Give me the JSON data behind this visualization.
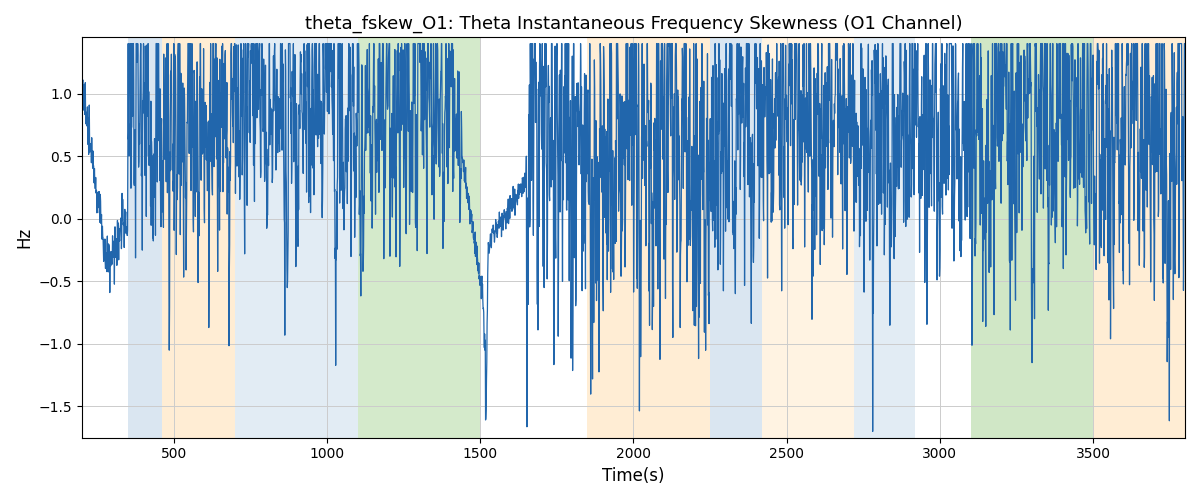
{
  "title": "theta_fskew_O1: Theta Instantaneous Frequency Skewness (O1 Channel)",
  "xlabel": "Time(s)",
  "ylabel": "Hz",
  "xlim": [
    200,
    3800
  ],
  "ylim": [
    -1.75,
    1.45
  ],
  "line_color": "#2166ac",
  "line_width": 0.9,
  "bg_color": "white",
  "grid_color": "#cccccc",
  "bands": [
    {
      "xmin": 350,
      "xmax": 460,
      "color": "#aec9e0",
      "alpha": 0.45
    },
    {
      "xmin": 460,
      "xmax": 700,
      "color": "#ffd9a0",
      "alpha": 0.45
    },
    {
      "xmin": 700,
      "xmax": 1100,
      "color": "#aec9e0",
      "alpha": 0.35
    },
    {
      "xmin": 1100,
      "xmax": 1500,
      "color": "#90c878",
      "alpha": 0.38
    },
    {
      "xmin": 1850,
      "xmax": 2250,
      "color": "#ffd9a0",
      "alpha": 0.45
    },
    {
      "xmin": 2250,
      "xmax": 2420,
      "color": "#aec9e0",
      "alpha": 0.45
    },
    {
      "xmin": 2420,
      "xmax": 2720,
      "color": "#ffd9a0",
      "alpha": 0.3
    },
    {
      "xmin": 2720,
      "xmax": 2920,
      "color": "#aec9e0",
      "alpha": 0.35
    },
    {
      "xmin": 3100,
      "xmax": 3500,
      "color": "#90c878",
      "alpha": 0.42
    },
    {
      "xmin": 3500,
      "xmax": 3800,
      "color": "#ffd9a0",
      "alpha": 0.45
    }
  ],
  "yticks": [
    -1.5,
    -1.0,
    -0.5,
    0.0,
    0.5,
    1.0
  ],
  "xticks": [
    500,
    1000,
    1500,
    2000,
    2500,
    3000,
    3500
  ],
  "seed": 42,
  "n_points": 3600
}
